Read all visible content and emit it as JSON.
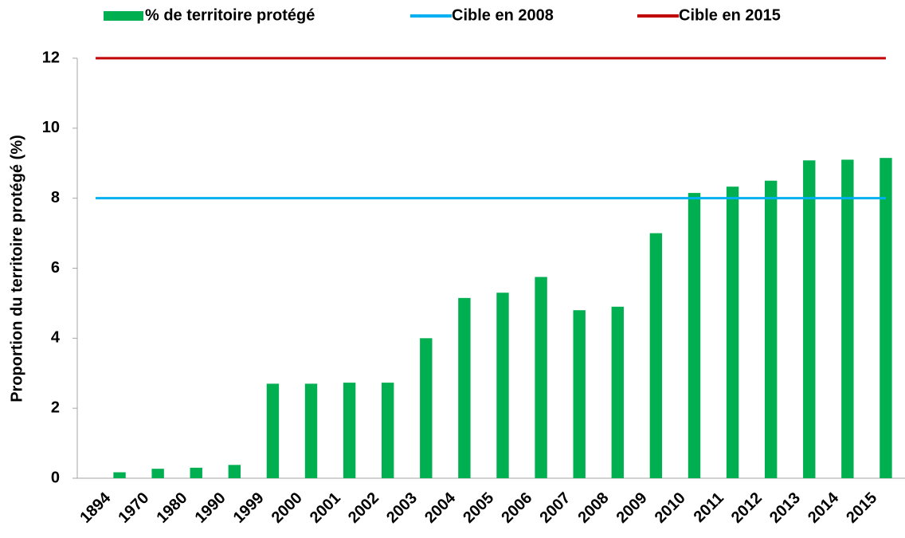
{
  "chart_data": {
    "type": "bar",
    "y_label": "Proportion du territoire protégé (%)",
    "categories": [
      "1894",
      "1970",
      "1980",
      "1990",
      "1999",
      "2000",
      "2001",
      "2002",
      "2003",
      "2004",
      "2005",
      "2006",
      "2007",
      "2008",
      "2009",
      "2010",
      "2011",
      "2012",
      "2013",
      "2014",
      "2015"
    ],
    "series": [
      {
        "name": "% de territoire protégé",
        "type": "bar",
        "color": "#00b050",
        "values": [
          0.17,
          0.27,
          0.3,
          0.38,
          2.7,
          2.7,
          2.73,
          2.73,
          4.0,
          5.15,
          5.3,
          5.75,
          4.8,
          4.9,
          7.0,
          8.15,
          8.33,
          8.5,
          9.08,
          9.1,
          9.15
        ]
      },
      {
        "name": "Cible en 2008",
        "type": "line",
        "color": "#00b0f0",
        "values": [
          8,
          8,
          8,
          8,
          8,
          8,
          8,
          8,
          8,
          8,
          8,
          8,
          8,
          8,
          8,
          8,
          8,
          8,
          8,
          8,
          8
        ]
      },
      {
        "name": "Cible en 2015",
        "type": "line",
        "color": "#c00000",
        "values": [
          12,
          12,
          12,
          12,
          12,
          12,
          12,
          12,
          12,
          12,
          12,
          12,
          12,
          12,
          12,
          12,
          12,
          12,
          12,
          12,
          12
        ]
      }
    ],
    "ylim": [
      0,
      12
    ],
    "yticks": [
      0,
      2,
      4,
      6,
      8,
      10,
      12
    ],
    "grid": false,
    "legend": "top"
  }
}
